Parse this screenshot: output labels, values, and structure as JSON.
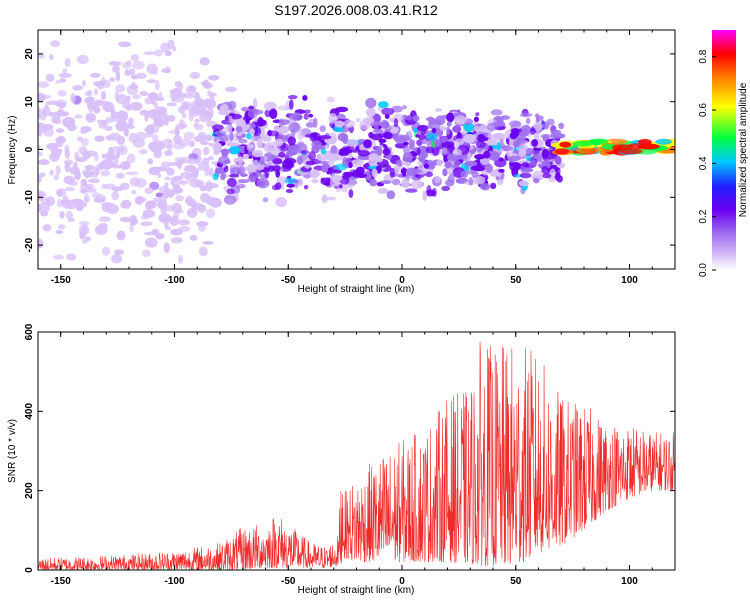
{
  "figure_title": "S197.2026.008.03.41.R12",
  "chart_data": [
    {
      "type": "heatmap",
      "title": "S197.2026.008.03.41.R12",
      "xlabel": "Height of straight line (km)",
      "ylabel": "Frequency (Hz)",
      "xlim": [
        -160,
        120
      ],
      "ylim": [
        -25,
        25
      ],
      "xticks": [
        -150,
        -100,
        -50,
        0,
        50,
        100
      ],
      "yticks": [
        -20,
        -10,
        0,
        10,
        20
      ],
      "xtick_labels": [
        "-150",
        "-100",
        "-50",
        "0",
        "50",
        "100"
      ],
      "ytick_labels": [
        "-20",
        "-10",
        "0",
        "10",
        "20"
      ],
      "colorbar": {
        "label": "Normalized spectral amplitude",
        "range": [
          0,
          0.9
        ],
        "ticks": [
          0.0,
          0.2,
          0.4,
          0.6,
          0.8
        ],
        "tick_labels": [
          "0.0",
          "0.2",
          "0.4",
          "0.6",
          "0.8"
        ],
        "colormap": [
          "#ffffff",
          "#d8bff8",
          "#a070f0",
          "#6a00f0",
          "#2020ff",
          "#00c8ff",
          "#00ff40",
          "#ffff00",
          "#ff8000",
          "#ff0000",
          "#ff00ff"
        ]
      },
      "regions": [
        {
          "x": [
            -160,
            -82
          ],
          "y_center": 0,
          "half_width_hz": 25,
          "amplitude": 0.08,
          "description": "broadband noise"
        },
        {
          "x": [
            -82,
            70
          ],
          "y_center": 0,
          "half_width_hz": 13,
          "amplitude": 0.18,
          "description": "broadband signal"
        },
        {
          "x": [
            70,
            120
          ],
          "y_center": 0.5,
          "half_width_hz": 1.2,
          "amplitude": 0.6,
          "description": "narrow tone"
        }
      ]
    },
    {
      "type": "line",
      "xlabel": "Height of straight line (km)",
      "ylabel": "SNR (10 * v/v)",
      "xlim": [
        -160,
        120
      ],
      "ylim": [
        0,
        600
      ],
      "xticks": [
        -150,
        -100,
        -50,
        0,
        50,
        100
      ],
      "yticks": [
        0,
        200,
        400,
        600
      ],
      "xtick_labels": [
        "-150",
        "-100",
        "-50",
        "0",
        "50",
        "100"
      ],
      "ytick_labels": [
        "0",
        "200",
        "400",
        "600"
      ],
      "series": [
        {
          "name": "SNR",
          "color": "#ee2a2a",
          "envelope": {
            "x": [
              -160,
              -120,
              -100,
              -80,
              -70,
              -60,
              -55,
              -50,
              -40,
              -33,
              -28,
              -26,
              -25,
              -20,
              -10,
              0,
              10,
              20,
              30,
              35,
              40,
              50,
              60,
              70,
              80,
              90,
              100,
              110,
              120
            ],
            "low": [
              0,
              0,
              0,
              0,
              0,
              5,
              5,
              5,
              5,
              5,
              10,
              20,
              30,
              20,
              20,
              20,
              20,
              20,
              15,
              10,
              10,
              10,
              40,
              60,
              100,
              150,
              180,
              200,
              200
            ],
            "high": [
              30,
              40,
              50,
              70,
              110,
              120,
              150,
              120,
              70,
              60,
              90,
              360,
              200,
              240,
              290,
              330,
              360,
              440,
              460,
              600,
              560,
              580,
              550,
              440,
              420,
              380,
              370,
              350,
              350
            ]
          }
        }
      ]
    }
  ]
}
